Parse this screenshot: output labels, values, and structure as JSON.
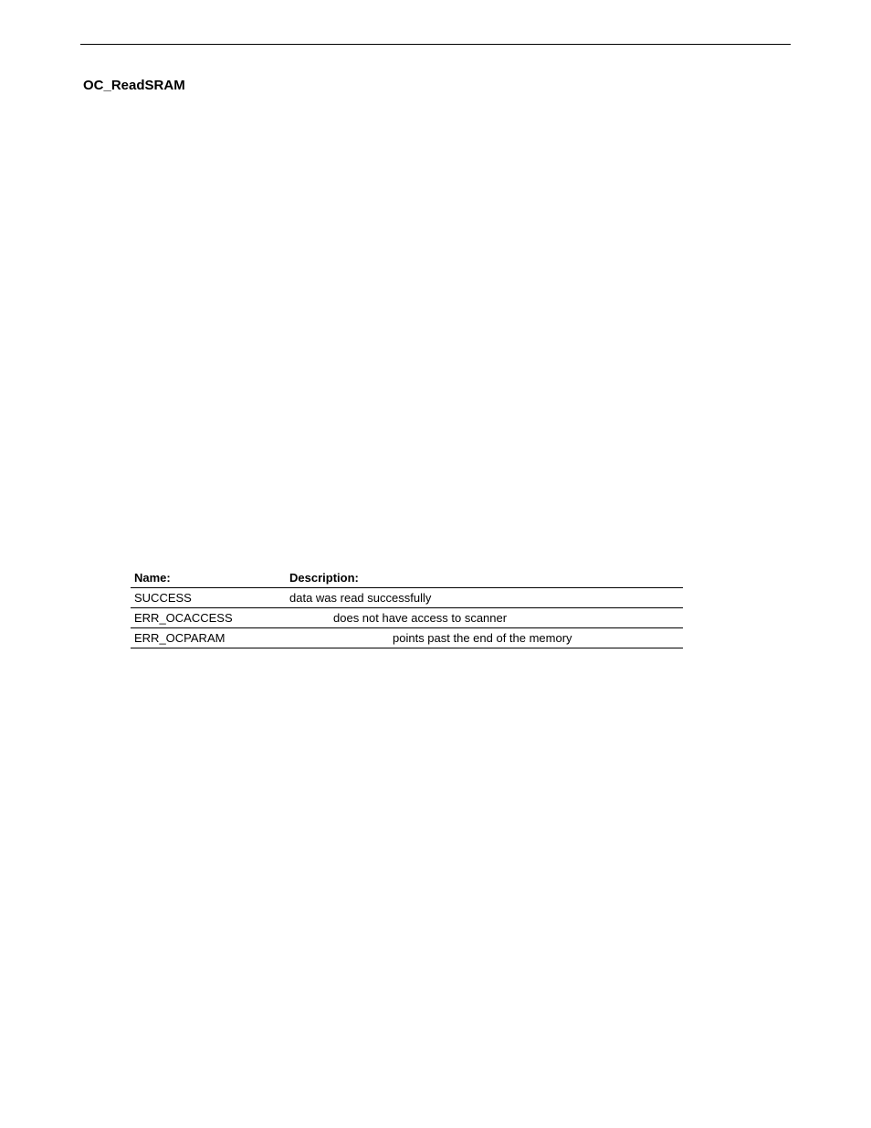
{
  "heading": "OC_ReadSRAM",
  "table": {
    "header": {
      "name": "Name:",
      "desc": "Description:"
    },
    "rows": [
      {
        "name": "SUCCESS",
        "desc": "data was read successfully",
        "desc_pad": 0
      },
      {
        "name": "ERR_OCACCESS",
        "desc": "does not have access to scanner",
        "desc_pad": 48
      },
      {
        "name": "ERR_OCPARAM",
        "desc": "points past the end of the memory",
        "desc_pad": 113
      }
    ]
  }
}
